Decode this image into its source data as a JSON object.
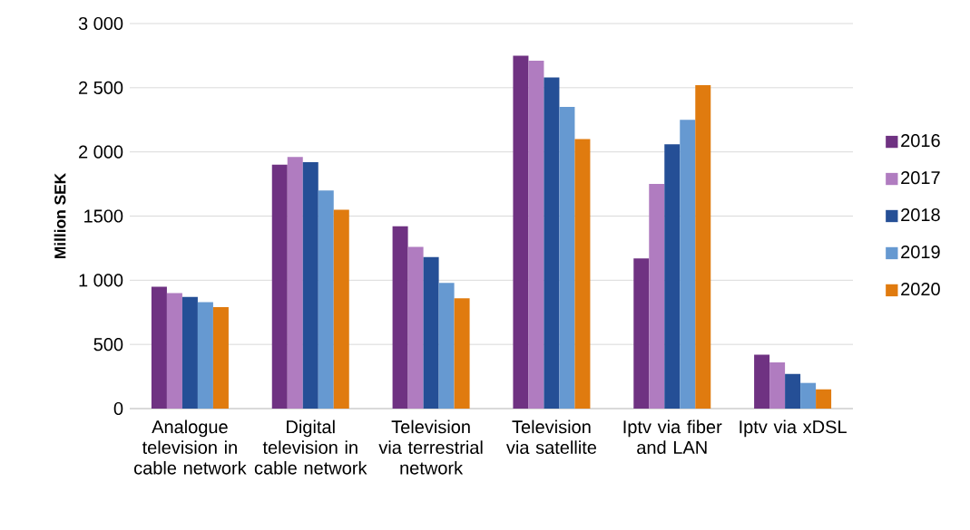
{
  "chart_data": {
    "type": "bar",
    "ylabel": "Million SEK",
    "categories": [
      "Analogue television in cable network",
      "Digital television in cable network",
      "Television via terrestrial network",
      "Television via satellite",
      "Iptv via fiber and LAN",
      "Iptv via xDSL"
    ],
    "series": [
      {
        "name": "2016",
        "color": "#6f3282",
        "values": [
          950,
          1900,
          1420,
          2750,
          1170,
          420
        ]
      },
      {
        "name": "2017",
        "color": "#b07cc0",
        "values": [
          900,
          1960,
          1260,
          2710,
          1750,
          360
        ]
      },
      {
        "name": "2018",
        "color": "#254f96",
        "values": [
          870,
          1920,
          1180,
          2580,
          2060,
          270
        ]
      },
      {
        "name": "2019",
        "color": "#6699d1",
        "values": [
          830,
          1700,
          980,
          2350,
          2250,
          200
        ]
      },
      {
        "name": "2020",
        "color": "#e07b0f",
        "values": [
          790,
          1550,
          860,
          2100,
          2520,
          150
        ]
      }
    ],
    "ylim": [
      0,
      3000
    ],
    "yticks": [
      0,
      500,
      {
        "value": 1000,
        "label": "1 000"
      },
      {
        "value": 1500,
        "label": "1500"
      },
      {
        "value": 2000,
        "label": "2 000"
      },
      {
        "value": 2500,
        "label": "2 500"
      },
      {
        "value": 3000,
        "label": "3 000"
      }
    ],
    "grid": "y",
    "legend": "right"
  }
}
